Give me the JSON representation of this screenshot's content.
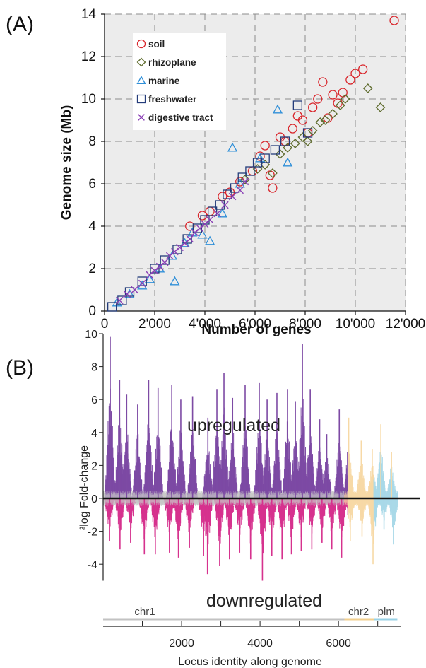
{
  "panels": {
    "a_label": "(A)",
    "b_label": "(B)"
  },
  "chart_data": [
    {
      "type": "scatter",
      "xlabel": "Number of genes",
      "ylabel": "Genome size (Mb)",
      "xlim": [
        0,
        12000
      ],
      "ylim": [
        0,
        14
      ],
      "x_tick_labels": [
        "0",
        "2'000",
        "4'000",
        "6'000",
        "8'000",
        "10'000",
        "12'000"
      ],
      "y_tick_labels": [
        "0",
        "2",
        "4",
        "6",
        "8",
        "10",
        "12",
        "14"
      ],
      "grid": true,
      "legend_position": "top-left",
      "series": [
        {
          "name": "soil",
          "marker": "circle",
          "color": "#d9262c",
          "points": [
            [
              3400,
              4.0
            ],
            [
              3900,
              4.5
            ],
            [
              4200,
              4.7
            ],
            [
              4700,
              5.4
            ],
            [
              5000,
              5.6
            ],
            [
              5400,
              6.1
            ],
            [
              5900,
              6.6
            ],
            [
              6200,
              7.3
            ],
            [
              6400,
              7.8
            ],
            [
              6600,
              6.4
            ],
            [
              6700,
              5.8
            ],
            [
              7000,
              8.2
            ],
            [
              7200,
              8.0
            ],
            [
              7500,
              8.6
            ],
            [
              7700,
              9.2
            ],
            [
              7900,
              9.0
            ],
            [
              8100,
              8.4
            ],
            [
              8300,
              9.6
            ],
            [
              8500,
              10.0
            ],
            [
              8700,
              10.8
            ],
            [
              8900,
              9.1
            ],
            [
              9100,
              10.2
            ],
            [
              9300,
              9.8
            ],
            [
              9500,
              10.3
            ],
            [
              9800,
              10.9
            ],
            [
              10000,
              11.2
            ],
            [
              10300,
              11.4
            ],
            [
              11550,
              13.7
            ]
          ]
        },
        {
          "name": "rhizoplane",
          "marker": "diamond",
          "color": "#5e6b2c",
          "points": [
            [
              5600,
              6.2
            ],
            [
              6100,
              6.7
            ],
            [
              6400,
              6.9
            ],
            [
              6700,
              6.5
            ],
            [
              7000,
              7.4
            ],
            [
              7300,
              7.7
            ],
            [
              7600,
              7.9
            ],
            [
              7900,
              8.2
            ],
            [
              8100,
              8.0
            ],
            [
              8300,
              8.5
            ],
            [
              8600,
              8.9
            ],
            [
              8800,
              9.0
            ],
            [
              9100,
              9.3
            ],
            [
              9400,
              9.7
            ],
            [
              9600,
              10.0
            ],
            [
              10500,
              10.5
            ],
            [
              11000,
              9.6
            ]
          ]
        },
        {
          "name": "marine",
          "marker": "triangle",
          "color": "#2f8fd8",
          "points": [
            [
              500,
              0.4
            ],
            [
              1000,
              0.8
            ],
            [
              1500,
              1.2
            ],
            [
              1800,
              1.5
            ],
            [
              2200,
              2.0
            ],
            [
              2700,
              2.6
            ],
            [
              2800,
              1.4
            ],
            [
              3200,
              3.2
            ],
            [
              3500,
              3.7
            ],
            [
              3900,
              3.6
            ],
            [
              4200,
              3.3
            ],
            [
              4700,
              4.6
            ],
            [
              5100,
              7.7
            ],
            [
              5400,
              6.0
            ],
            [
              6200,
              7.2
            ],
            [
              6900,
              9.5
            ],
            [
              7300,
              7.0
            ]
          ]
        },
        {
          "name": "freshwater",
          "marker": "square",
          "color": "#243c7a",
          "points": [
            [
              300,
              0.2
            ],
            [
              700,
              0.5
            ],
            [
              1000,
              0.9
            ],
            [
              1500,
              1.4
            ],
            [
              2000,
              2.0
            ],
            [
              2400,
              2.4
            ],
            [
              2900,
              2.9
            ],
            [
              3300,
              3.4
            ],
            [
              3700,
              3.9
            ],
            [
              4000,
              4.3
            ],
            [
              4300,
              4.7
            ],
            [
              4600,
              5.0
            ],
            [
              4900,
              5.5
            ],
            [
              5200,
              5.8
            ],
            [
              5500,
              6.3
            ],
            [
              5800,
              6.6
            ],
            [
              6100,
              7.0
            ],
            [
              6400,
              7.2
            ],
            [
              6800,
              7.6
            ],
            [
              7200,
              8.0
            ],
            [
              7700,
              9.7
            ],
            [
              8100,
              8.4
            ]
          ]
        },
        {
          "name": "digestive tract",
          "marker": "x",
          "color": "#8a3fb5",
          "points": [
            [
              600,
              0.5
            ],
            [
              900,
              0.8
            ],
            [
              1200,
              1.0
            ],
            [
              1500,
              1.3
            ],
            [
              1800,
              1.7
            ],
            [
              2000,
              1.9
            ],
            [
              2200,
              2.1
            ],
            [
              2400,
              2.3
            ],
            [
              2600,
              2.6
            ],
            [
              2800,
              2.8
            ],
            [
              3000,
              3.0
            ],
            [
              3200,
              3.2
            ],
            [
              3400,
              3.4
            ],
            [
              3600,
              3.7
            ],
            [
              3800,
              3.9
            ],
            [
              4000,
              4.1
            ],
            [
              4200,
              4.3
            ],
            [
              4500,
              4.6
            ],
            [
              4800,
              5.0
            ],
            [
              5100,
              5.4
            ],
            [
              5400,
              5.7
            ],
            [
              5600,
              6.1
            ]
          ]
        }
      ]
    },
    {
      "type": "bar",
      "ylabel": "²log Fold-change",
      "xlabel": "Locus identity along genome",
      "xlim": [
        0,
        7600
      ],
      "ylim": [
        -5,
        10
      ],
      "x_tick_labels": [
        "2000",
        "4000",
        "6000"
      ],
      "x_tick_values": [
        2000,
        4000,
        6000
      ],
      "y_tick_labels": [
        "-4",
        "-2",
        "0",
        "2",
        "4",
        "6",
        "8",
        "10"
      ],
      "annotations": {
        "up": "upregulated",
        "down": "downregulated"
      },
      "colors": {
        "up_significant": "#7d4aa4",
        "down_significant": "#d6328e",
        "chr1_nonsig": "#c8c8c8",
        "chr2_nonsig": "#f7d9a6",
        "plasmid_nonsig": "#a9d9e8"
      },
      "regions": [
        {
          "name": "chr1",
          "start": 0,
          "end": 6150
        },
        {
          "name": "chr2",
          "start": 6150,
          "end": 6900
        },
        {
          "name": "plm",
          "start": 6900,
          "end": 7500
        }
      ],
      "peaks_up": [
        [
          180,
          9.8
        ],
        [
          420,
          7.2
        ],
        [
          600,
          6.3
        ],
        [
          880,
          5.7
        ],
        [
          1160,
          7.2
        ],
        [
          1400,
          6.7
        ],
        [
          1750,
          6.9
        ],
        [
          1980,
          6.0
        ],
        [
          2280,
          6.2
        ],
        [
          2670,
          4.9
        ],
        [
          2900,
          6.6
        ],
        [
          3080,
          7.6
        ],
        [
          3300,
          6.1
        ],
        [
          3620,
          6.9
        ],
        [
          3980,
          7.0
        ],
        [
          4180,
          6.0
        ],
        [
          4430,
          6.4
        ],
        [
          4700,
          6.6
        ],
        [
          4900,
          5.9
        ],
        [
          5080,
          9.4
        ],
        [
          5280,
          6.6
        ],
        [
          5520,
          4.8
        ],
        [
          5700,
          3.9
        ],
        [
          6020,
          5.4
        ],
        [
          6260,
          4.9
        ],
        [
          6580,
          3.5
        ],
        [
          6860,
          3.0
        ],
        [
          7080,
          4.5
        ],
        [
          7350,
          2.8
        ]
      ],
      "peaks_down": [
        [
          160,
          -2.6
        ],
        [
          430,
          -3.1
        ],
        [
          700,
          -2.7
        ],
        [
          1050,
          -3.4
        ],
        [
          1330,
          -3.4
        ],
        [
          1690,
          -3.3
        ],
        [
          1920,
          -3.6
        ],
        [
          2200,
          -3.0
        ],
        [
          2560,
          -3.5
        ],
        [
          2660,
          -4.6
        ],
        [
          2970,
          -4.1
        ],
        [
          3220,
          -3.7
        ],
        [
          3480,
          -3.3
        ],
        [
          3760,
          -3.7
        ],
        [
          4060,
          -5.0
        ],
        [
          4300,
          -3.5
        ],
        [
          4560,
          -3.7
        ],
        [
          4800,
          -3.4
        ],
        [
          5050,
          -3.2
        ],
        [
          5320,
          -3.1
        ],
        [
          5580,
          -2.7
        ],
        [
          5830,
          -3.1
        ],
        [
          6080,
          -3.6
        ],
        [
          6300,
          -2.6
        ],
        [
          6600,
          -2.3
        ],
        [
          6880,
          -4.0
        ],
        [
          7160,
          -1.9
        ],
        [
          7400,
          -2.8
        ]
      ]
    }
  ]
}
